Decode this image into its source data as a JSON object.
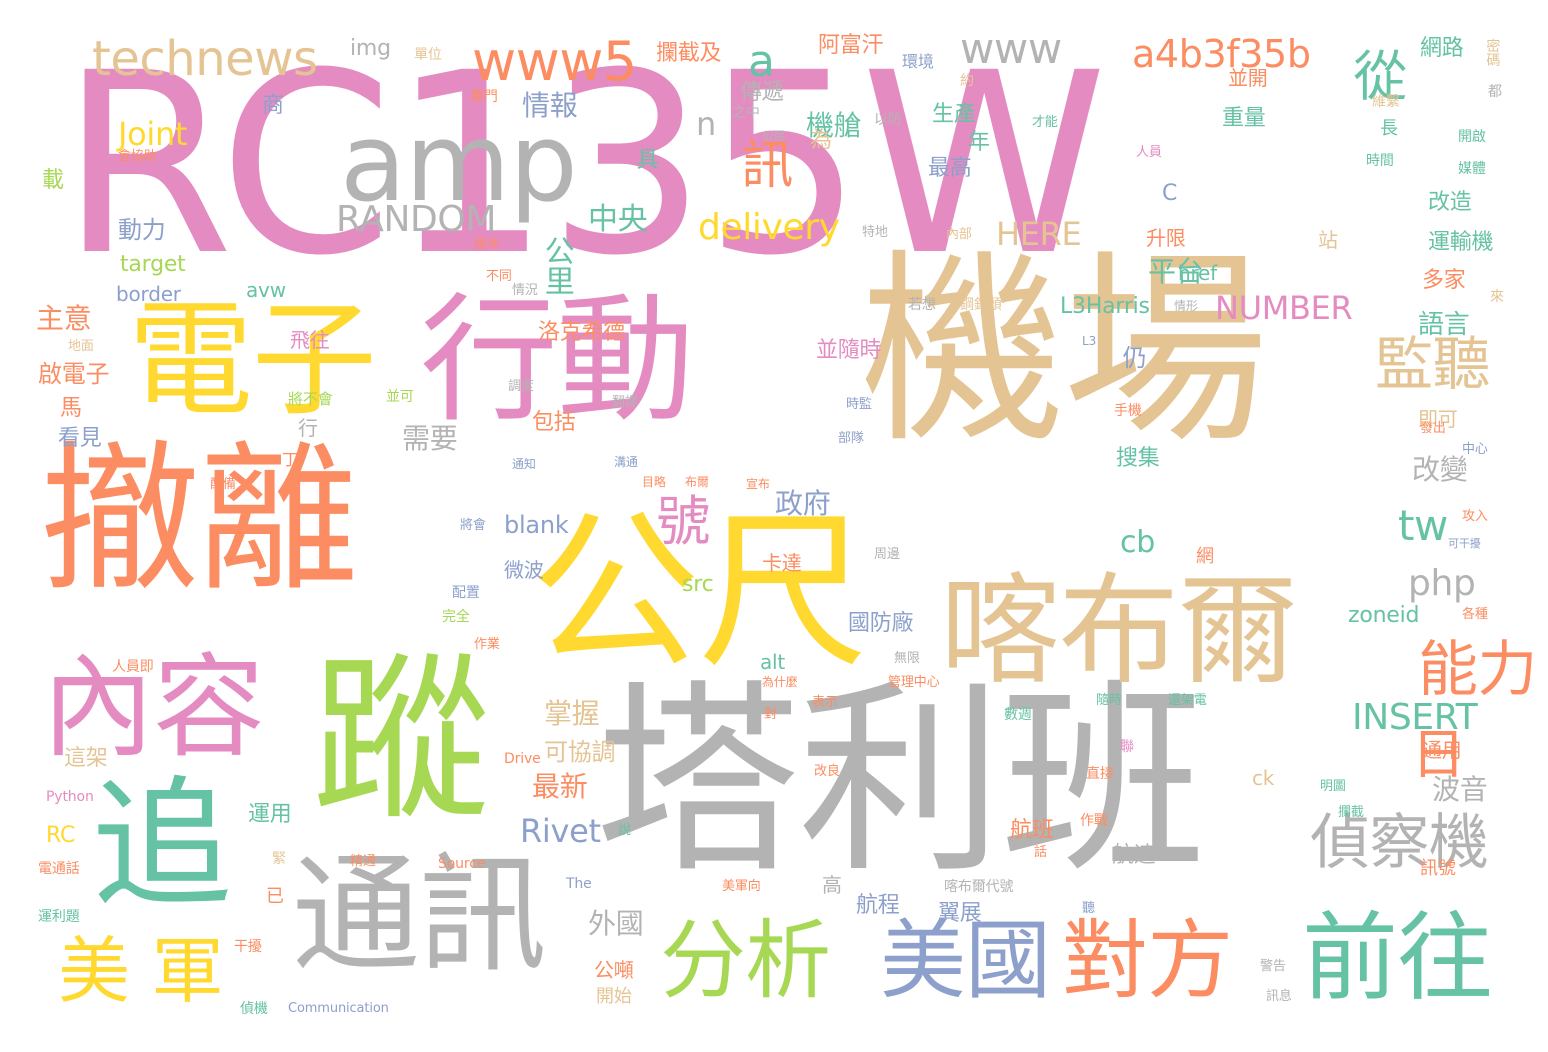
{
  "colors": {
    "pink": "#e48cc2",
    "gray": "#b3b3b3",
    "orange": "#fc8d62",
    "yellow": "#ffd92f",
    "green": "#a6d854",
    "teal": "#66c2a5",
    "blue": "#8da0cb",
    "tan": "#e5c494"
  },
  "words": {
    "w_rc135w": "RC135W",
    "w_jichang": "機場",
    "w_talibeng": "塔利班",
    "w_cheli": "撤離",
    "w_xingdong": "行動",
    "w_gongchi": "公尺",
    "w_zong": "蹤",
    "w_zhui": "追",
    "w_dianzi": "電子",
    "w_kabuer": "喀布爾",
    "w_neirong": "內容",
    "w_tongxun": "通訊",
    "w_amp": "amp",
    "w_fenxi": "分析",
    "w_meiguo": "美國",
    "w_duifang": "對方",
    "w_qianwang": "前往",
    "w_meijun": "美 軍",
    "w_zhenchaji": "偵察機",
    "w_nengli": "能力",
    "w_jianting": "監聽",
    "w_technews": "technews",
    "w_www5": "www5",
    "w_www": "www",
    "w_a4b3": "a4b3f35b",
    "w_random": "RANDOM",
    "w_delivery": "delivery",
    "w_insert": "INSERT",
    "w_number": "NUMBER",
    "w_here": "HERE",
    "w_rivet": "Rivet",
    "w_joint": "Joint",
    "w_php": "php",
    "w_tw": "tw",
    "w_cb": "cb",
    "w_a": "a",
    "w_n": "n",
    "w_img": "img",
    "w_blank": "blank",
    "w_zoneid": "zoneid",
    "w_href": "href",
    "w_src": "src",
    "w_alt": "alt",
    "w_target": "target",
    "w_border": "border",
    "w_avw": "avw",
    "w_l3harris": "L3Harris",
    "w_c": "C",
    "w_ck": "ck",
    "w_rc": "RC",
    "w_python": "Python",
    "w_drive": "Drive",
    "w_source": "Source",
    "w_the": "The",
    "w_communication": "Communication",
    "w_l3": "L3",
    "w_hao": "號",
    "w_ri": "日",
    "w_xun": "訊",
    "w_cong": "從",
    "w_zhongyang": "中央",
    "w_gongli": "公里",
    "w_pingtai": "平台",
    "w_jicang": "機艙",
    "w_qingbao": "情報",
    "w_zhengfu": "政府",
    "w_xuyao": "需要",
    "w_gaibian": "改變",
    "w_boyin": "波音",
    "w_zuixin": "最新",
    "w_zhangwo": "掌握",
    "w_kexietiao": "可協調",
    "w_luokexide": "洛克希德",
    "w_baokuo": "包括",
    "w_kada": "卡達",
    "w_weibo": "微波",
    "w_guofangchang": "國防廠",
    "w_sousuo": "搜集",
    "w_yuyan": "語言",
    "w_reng": "仍",
    "w_binsuishi": "並隨時",
    "w_hangban": "航班",
    "w_hangcheng": "航程",
    "w_yizhan": "翼展",
    "w_hangsu": "航速",
    "w_waiguo": "外國",
    "w_gongdun": "公噸",
    "w_kaishi": "開始",
    "w_gao": "高",
    "w_zhuyi": "主意",
    "w_qidianzi": "啟電子",
    "w_ma": "馬",
    "w_kanjian": "看見",
    "w_xing": "行",
    "w_feiwang": "飛往",
    "w_jiangbuhui": "將不會",
    "w_dongli": "動力",
    "w_zai": "載",
    "w_shang": "商",
    "w_danwei": "單位",
    "w_zhuanmen": "專門",
    "w_lanjieji": "攔截及",
    "w_afuhan": "阿富汗",
    "w_huanjing": "環境",
    "w_chuandi": "傳遞",
    "w_shengchan": "生產",
    "w_zuigao": "最高",
    "w_nian": "年",
    "w_wei": "為",
    "w_ju": "具",
    "w_yue": "約",
    "w_binkai": "並開",
    "w_zhongliang": "重量",
    "w_wanglu": "網路",
    "w_gaizao": "改造",
    "w_yunshuji": "運輸機",
    "w_duojia": "多家",
    "w_zhan": "站",
    "w_shengxian": "升限",
    "w_jishi": "即可",
    "w_tongyong": "通用",
    "w_xunhao": "訊號",
    "w_mimi": "密碼",
    "w_zhang": "長",
    "w_dou": "都",
    "w_weixi": "維繫",
    "w_kaiqi": "開啟",
    "w_shijian": "時間",
    "w_meiti": "媒體",
    "w_lai": "來",
    "w_gongmin": "公民",
    "w_yifang": "以防",
    "w_zhizhong": "之中",
    "w_caineng": "才能",
    "w_renyuan": "人員",
    "w_huixiezhu": "會協助",
    "w_banben": "版本",
    "w_butong": "不同",
    "w_qingkuang": "情況",
    "w_tedi": "特地",
    "w_neibu": "內部",
    "w_ruoxiang": "若想",
    "w_dingluotou": "鋼釘頭",
    "w_qingxing": "情形",
    "w_dimian": "地面",
    "w_binke": "並可",
    "w_tiaodu": "調度",
    "w_fanyi": "翻譯",
    "w_shijian2": "時監",
    "w_budui": "部隊",
    "w_shouji": "手機",
    "w_fachu": "發出",
    "w_zhongxin": "中心",
    "w_ding": "丁",
    "w_tongzhi": "通知",
    "w_goutong": "溝通",
    "w_zimu": "目略",
    "w_bubu": "布爾",
    "w_xuanbu": "宣布",
    "w_peibei": "配備",
    "w_jianghui": "將會",
    "w_gongjin": "攻入",
    "w_kegongrao": "可干擾",
    "w_wang": "網",
    "w_zhoudai": "周邊",
    "w_gezhong": "各種",
    "w_peizhi": "配置",
    "w_wanquan": "完全",
    "w_zuoye": "作業",
    "w_renyuanji": "人員即",
    "w_weishenme": "為什麼",
    "w_guanlizhongxin": "管理中心",
    "w_wuxian": "無限",
    "w_biaoshi": "表示",
    "w_dui": "對",
    "w_shuju": "數週",
    "w_suishi": "隨時",
    "w_huanjia": "還架電",
    "w_zhejia": "這架",
    "w_gailiang": "改良",
    "w_lian": "聯",
    "w_zhijie": "直接",
    "w_minghui": "明圖",
    "w_lanjie": "攔截",
    "w_yunyong": "運用",
    "w_shuo": "說",
    "w_zuozhan": "作戰",
    "w_jing": "緊",
    "w_jingtong": "精通",
    "w_hua": "話",
    "w_dianhua": "電通話",
    "w_yi": "已",
    "w_kabuerdaihao": "喀布爾代號",
    "w_meijunxiang": "美軍向",
    "w_bing": "聽",
    "w_yunli": "運利題",
    "w_ganrao": "干擾",
    "w_jinggao": "警告",
    "w_xunxi": "訊息",
    "w_zhenji": "偵機"
  }
}
